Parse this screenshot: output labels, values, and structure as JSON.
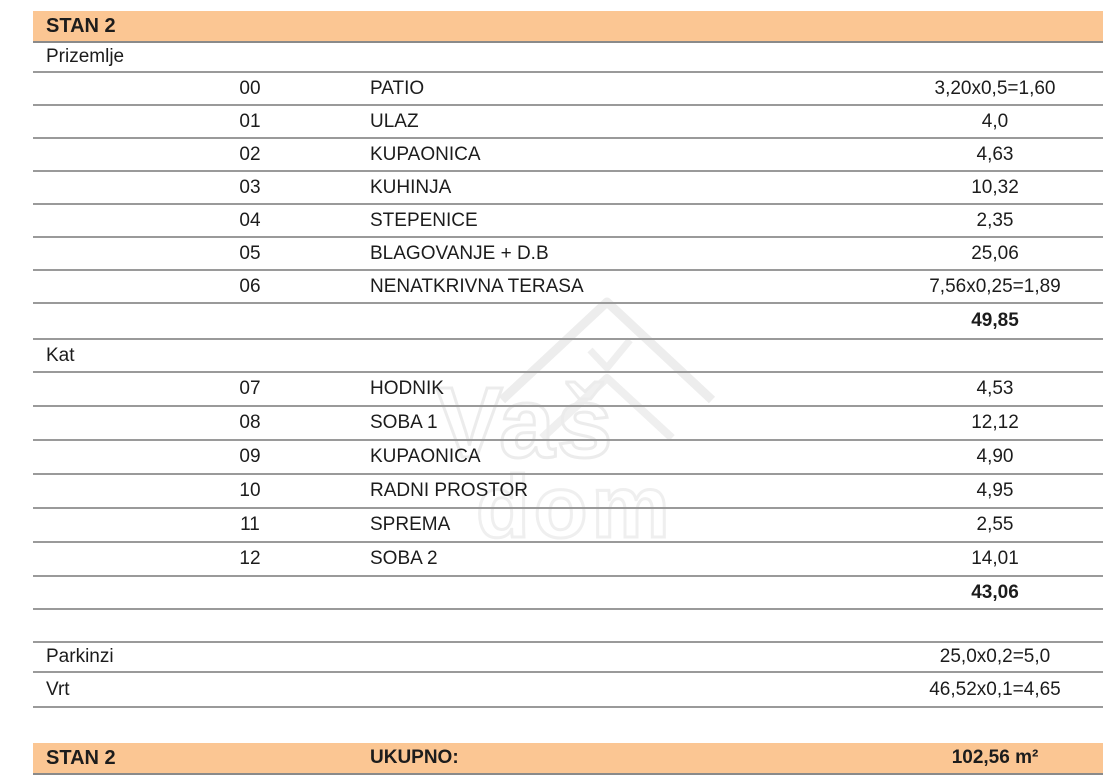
{
  "header": {
    "title": "STAN 2"
  },
  "sections": [
    {
      "label": "Prizemlje",
      "rows": [
        {
          "num": "00",
          "name": "PATIO",
          "value": "3,20x0,5=1,60"
        },
        {
          "num": "01",
          "name": "ULAZ",
          "value": "4,0"
        },
        {
          "num": "02",
          "name": "KUPAONICA",
          "value": "4,63"
        },
        {
          "num": "03",
          "name": "KUHINJA",
          "value": "10,32"
        },
        {
          "num": "04",
          "name": "STEPENICE",
          "value": "2,35"
        },
        {
          "num": "05",
          "name": "BLAGOVANJE + D.B",
          "value": "25,06"
        },
        {
          "num": "06",
          "name": "NENATKRIVNA TERASA",
          "value": "7,56x0,25=1,89"
        }
      ],
      "subtotal": "49,85"
    },
    {
      "label": "Kat",
      "rows": [
        {
          "num": "07",
          "name": "HODNIK",
          "value": "4,53"
        },
        {
          "num": "08",
          "name": "SOBA 1",
          "value": "12,12"
        },
        {
          "num": "09",
          "name": "KUPAONICA",
          "value": "4,90"
        },
        {
          "num": "10",
          "name": "RADNI PROSTOR",
          "value": "4,95"
        },
        {
          "num": "11",
          "name": "SPREMA",
          "value": "2,55"
        },
        {
          "num": "12",
          "name": "SOBA 2",
          "value": "14,01"
        }
      ],
      "subtotal": "43,06"
    }
  ],
  "extras": [
    {
      "label": "Parkinzi",
      "value": "25,0x0,2=5,0"
    },
    {
      "label": "Vrt",
      "value": "46,52x0,1=4,65"
    }
  ],
  "footer": {
    "title": "STAN 2",
    "total_label": "UKUPNO:",
    "total_value": "102,56 m²"
  },
  "watermark": {
    "line1": "Vaš",
    "line2": "dom"
  },
  "colors": {
    "band": "#fbc693",
    "line": "#9a9a9a"
  }
}
